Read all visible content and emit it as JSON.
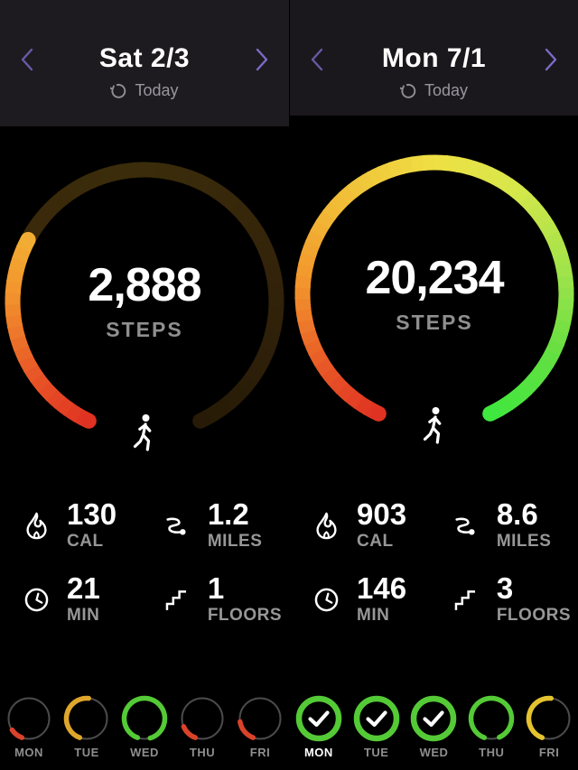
{
  "ui_colors": {
    "red": "#d9432a",
    "amber": "#dfa62c",
    "yellow": "#e4c32f",
    "green": "#54ca36",
    "accent_purple": "#7a6cc8",
    "track_gray": "#4b4b4b",
    "header_bg": "#1d1b1f",
    "text_muted": "#8f8f8f"
  },
  "gauge_gradient": {
    "bright": [
      [
        0,
        "#df3222"
      ],
      [
        0.1,
        "#e85627"
      ],
      [
        0.22,
        "#f2932c"
      ],
      [
        0.34,
        "#f1ba36"
      ],
      [
        0.5,
        "#efdf44"
      ],
      [
        0.62,
        "#d6e74a"
      ],
      [
        0.76,
        "#9fe34a"
      ],
      [
        0.88,
        "#63df41"
      ],
      [
        1,
        "#3fe83f"
      ]
    ],
    "dim": [
      [
        0,
        "#2c1a07"
      ],
      [
        0.25,
        "#392709"
      ],
      [
        0.5,
        "#3b2d0b"
      ],
      [
        0.75,
        "#33230a"
      ],
      [
        1,
        "#271b07"
      ]
    ]
  },
  "panels": [
    {
      "header": {
        "title": "Sat 2/3",
        "today_label": "Today"
      },
      "steps": {
        "value": "2,888",
        "label": "STEPS"
      },
      "gauge": {
        "progress": 0.3
      },
      "stats": [
        {
          "icon": "flame-icon",
          "value": "130",
          "label": "CAL"
        },
        {
          "icon": "route-icon",
          "value": "1.2",
          "label": "MILES"
        },
        {
          "icon": "clock-icon",
          "value": "21",
          "label": "MIN"
        },
        {
          "icon": "stairs-icon",
          "value": "1",
          "label": "FLOORS"
        }
      ],
      "week": [
        {
          "day": "MON",
          "progress": 0.1,
          "color": "red",
          "complete": false,
          "highlight": false
        },
        {
          "day": "TUE",
          "progress": 0.46,
          "color": "amber",
          "complete": false,
          "highlight": false
        },
        {
          "day": "WED",
          "progress": 0.9,
          "color": "green",
          "complete": false,
          "highlight": false
        },
        {
          "day": "THU",
          "progress": 0.13,
          "color": "red",
          "complete": false,
          "highlight": false
        },
        {
          "day": "FRI",
          "progress": 0.17,
          "color": "red",
          "complete": false,
          "highlight": false
        }
      ]
    },
    {
      "header": {
        "title": "Mon 7/1",
        "today_label": "Today"
      },
      "steps": {
        "value": "20,234",
        "label": "STEPS"
      },
      "gauge": {
        "progress": 1
      },
      "stats": [
        {
          "icon": "flame-icon",
          "value": "903",
          "label": "CAL"
        },
        {
          "icon": "route-icon",
          "value": "8.6",
          "label": "MILES"
        },
        {
          "icon": "clock-icon",
          "value": "146",
          "label": "MIN"
        },
        {
          "icon": "stairs-icon",
          "value": "3",
          "label": "FLOORS"
        }
      ],
      "week": [
        {
          "day": "MON",
          "progress": 1,
          "color": "green",
          "complete": true,
          "highlight": true
        },
        {
          "day": "TUE",
          "progress": 1,
          "color": "green",
          "complete": true,
          "highlight": false
        },
        {
          "day": "WED",
          "progress": 1,
          "color": "green",
          "complete": true,
          "highlight": false
        },
        {
          "day": "THU",
          "progress": 0.88,
          "color": "green",
          "complete": false,
          "highlight": false
        },
        {
          "day": "FRI",
          "progress": 0.46,
          "color": "yellow",
          "complete": false,
          "highlight": false
        }
      ]
    }
  ]
}
